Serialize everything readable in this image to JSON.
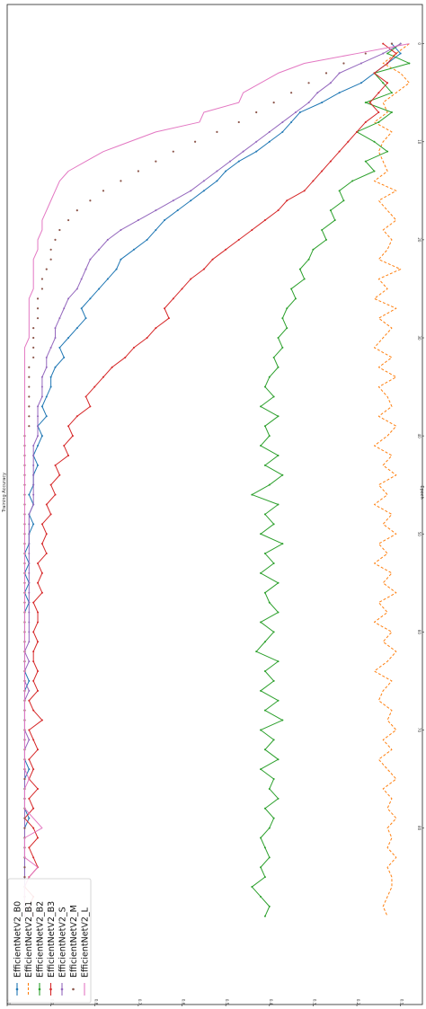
{
  "chart_data": {
    "type": "line",
    "orientation": "rotated-90-clockwise",
    "title": "",
    "xlabel": "Epoch",
    "ylabel": "Training Accuracy",
    "xlim": [
      -4,
      98
    ],
    "ylim": [
      0.05,
      1.0
    ],
    "xticks": [
      0,
      10,
      20,
      30,
      40,
      50,
      60,
      70,
      80
    ],
    "yticks": [
      0.1,
      0.2,
      0.3,
      0.4,
      0.5,
      0.6,
      0.7,
      0.8,
      0.9,
      1.0
    ],
    "grid": false,
    "legend_position": "lower-left",
    "series": [
      {
        "name": "EfficientNetV2_B0",
        "color": "#1f77b4",
        "marker": "dot",
        "dash": "solid",
        "values": [
          0.12,
          0.1,
          0.13,
          0.16,
          0.19,
          0.24,
          0.28,
          0.33,
          0.35,
          0.37,
          0.4,
          0.43,
          0.47,
          0.5,
          0.52,
          0.55,
          0.58,
          0.61,
          0.64,
          0.66,
          0.68,
          0.71,
          0.74,
          0.75,
          0.77,
          0.79,
          0.81,
          0.83,
          0.82,
          0.84,
          0.86,
          0.88,
          0.87,
          0.89,
          0.9,
          0.9,
          0.91,
          0.92,
          0.91,
          0.93,
          0.92,
          0.93,
          0.94,
          0.93,
          0.94,
          0.94,
          0.95,
          0.94,
          0.95,
          0.94,
          0.95,
          0.95,
          0.96,
          0.95,
          0.96,
          0.95,
          0.96,
          0.95,
          0.96,
          0.96,
          0.96,
          0.96,
          0.96,
          0.96,
          0.96,
          0.95,
          0.96,
          0.96,
          0.96,
          0.96,
          0.96,
          0.96,
          0.96,
          0.96,
          0.95,
          0.96,
          0.96,
          0.96,
          0.96,
          0.95,
          0.96,
          0.96,
          0.96,
          0.96,
          0.96,
          0.96,
          0.96,
          0.96,
          0.96,
          0.96
        ]
      },
      {
        "name": "EfficientNetV2_B1",
        "color": "#ff7f0e",
        "marker": "none",
        "dash": "dashed",
        "values": [
          0.08,
          0.11,
          0.14,
          0.1,
          0.08,
          0.11,
          0.14,
          0.13,
          0.16,
          0.12,
          0.14,
          0.15,
          0.14,
          0.13,
          0.16,
          0.11,
          0.15,
          0.13,
          0.11,
          0.14,
          0.12,
          0.13,
          0.15,
          0.1,
          0.15,
          0.13,
          0.16,
          0.11,
          0.15,
          0.12,
          0.14,
          0.16,
          0.12,
          0.15,
          0.11,
          0.15,
          0.13,
          0.12,
          0.15,
          0.11,
          0.13,
          0.16,
          0.12,
          0.14,
          0.11,
          0.15,
          0.13,
          0.16,
          0.12,
          0.14,
          0.11,
          0.15,
          0.13,
          0.16,
          0.12,
          0.14,
          0.11,
          0.15,
          0.13,
          0.16,
          0.12,
          0.14,
          0.11,
          0.13,
          0.16,
          0.12,
          0.14,
          0.15,
          0.12,
          0.13,
          0.11,
          0.14,
          0.12,
          0.15,
          0.13,
          0.11,
          0.14,
          0.12,
          0.13,
          0.11,
          0.13,
          0.12,
          0.13,
          0.11,
          0.13,
          0.12,
          0.12,
          0.13,
          0.14,
          0.13
        ]
      },
      {
        "name": "EfficientNetV2_B2",
        "color": "#2ca02c",
        "marker": "dot",
        "dash": "solid",
        "values": [
          0.1,
          0.13,
          0.08,
          0.16,
          0.14,
          0.12,
          0.18,
          0.12,
          0.15,
          0.2,
          0.16,
          0.13,
          0.18,
          0.16,
          0.21,
          0.24,
          0.23,
          0.26,
          0.25,
          0.28,
          0.27,
          0.3,
          0.31,
          0.33,
          0.32,
          0.35,
          0.34,
          0.36,
          0.37,
          0.36,
          0.38,
          0.37,
          0.39,
          0.38,
          0.4,
          0.41,
          0.39,
          0.42,
          0.38,
          0.41,
          0.4,
          0.42,
          0.38,
          0.41,
          0.37,
          0.4,
          0.44,
          0.38,
          0.41,
          0.39,
          0.42,
          0.37,
          0.41,
          0.39,
          0.42,
          0.38,
          0.41,
          0.4,
          0.38,
          0.42,
          0.39,
          0.41,
          0.43,
          0.38,
          0.41,
          0.39,
          0.42,
          0.38,
          0.41,
          0.37,
          0.42,
          0.39,
          0.41,
          0.38,
          0.42,
          0.39,
          0.4,
          0.38,
          0.41,
          0.39,
          0.4,
          0.42,
          0.41,
          0.4,
          0.42,
          0.41,
          0.44,
          0.42,
          0.4,
          0.41
        ]
      },
      {
        "name": "EfficientNetV2_B3",
        "color": "#d62728",
        "marker": "dot",
        "dash": "solid",
        "values": [
          0.14,
          0.11,
          0.13,
          0.16,
          0.13,
          0.15,
          0.17,
          0.15,
          0.18,
          0.2,
          0.22,
          0.24,
          0.26,
          0.28,
          0.3,
          0.32,
          0.36,
          0.38,
          0.41,
          0.44,
          0.47,
          0.5,
          0.53,
          0.55,
          0.58,
          0.6,
          0.62,
          0.64,
          0.63,
          0.66,
          0.68,
          0.71,
          0.73,
          0.76,
          0.78,
          0.8,
          0.82,
          0.81,
          0.84,
          0.86,
          0.85,
          0.87,
          0.86,
          0.89,
          0.88,
          0.9,
          0.89,
          0.91,
          0.9,
          0.92,
          0.91,
          0.92,
          0.91,
          0.93,
          0.92,
          0.93,
          0.92,
          0.94,
          0.93,
          0.93,
          0.94,
          0.93,
          0.94,
          0.94,
          0.93,
          0.94,
          0.93,
          0.95,
          0.94,
          0.92,
          0.95,
          0.94,
          0.93,
          0.95,
          0.94,
          0.95,
          0.93,
          0.95,
          0.94,
          0.96,
          0.94,
          0.93,
          0.95,
          0.94,
          0.93,
          0.95,
          0.96,
          0.94,
          0.95,
          0.94
        ]
      },
      {
        "name": "EfficientNetV2_S",
        "color": "#9467bd",
        "marker": "dot",
        "dash": "solid",
        "values": [
          0.1,
          0.14,
          0.19,
          0.24,
          0.26,
          0.29,
          0.31,
          0.34,
          0.37,
          0.4,
          0.43,
          0.46,
          0.49,
          0.52,
          0.55,
          0.58,
          0.62,
          0.66,
          0.7,
          0.74,
          0.77,
          0.79,
          0.81,
          0.82,
          0.83,
          0.84,
          0.86,
          0.87,
          0.88,
          0.89,
          0.89,
          0.9,
          0.91,
          0.91,
          0.92,
          0.92,
          0.92,
          0.93,
          0.93,
          0.93,
          0.93,
          0.94,
          0.94,
          0.94,
          0.94,
          0.94,
          0.94,
          0.94,
          0.95,
          0.95,
          0.95,
          0.95,
          0.95,
          0.95,
          0.95,
          0.95,
          0.95,
          0.95,
          0.95,
          0.95,
          0.95,
          0.95,
          0.96,
          0.95,
          0.96,
          0.96,
          0.95,
          0.96,
          0.96,
          0.96,
          0.96,
          0.95,
          0.96,
          0.96,
          0.96,
          0.96,
          0.96,
          0.96,
          0.96,
          0.96,
          0.96,
          0.96,
          0.96,
          0.96,
          0.96,
          0.96,
          0.96,
          0.96,
          0.96,
          0.96
        ]
      },
      {
        "name": "EfficientNetV2_M",
        "color": "#8c564b",
        "marker": "dot",
        "dash": "none",
        "values": [
          0.12,
          0.18,
          0.23,
          0.27,
          0.31,
          0.35,
          0.39,
          0.43,
          0.47,
          0.52,
          0.57,
          0.62,
          0.66,
          0.7,
          0.74,
          0.78,
          0.81,
          0.84,
          0.86,
          0.88,
          0.89,
          0.9,
          0.9,
          0.91,
          0.92,
          0.92,
          0.93,
          0.93,
          0.93,
          0.94,
          0.94,
          0.94,
          0.94,
          0.95,
          0.95,
          0.95,
          0.95,
          0.95,
          0.95,
          0.95,
          0.96,
          0.96,
          0.96,
          0.96,
          0.96,
          0.96,
          0.96,
          0.96,
          0.96,
          0.96,
          0.96,
          0.96,
          0.96,
          0.96,
          0.96,
          0.96,
          0.96,
          0.96,
          0.96,
          0.96,
          0.96,
          0.96,
          0.96,
          0.96,
          0.96,
          0.96,
          0.96,
          0.96,
          0.96,
          0.96,
          0.96,
          0.96,
          0.96,
          0.96,
          0.96,
          0.96,
          0.96,
          0.96,
          0.96,
          0.96,
          0.96,
          0.96,
          0.96,
          0.96,
          0.96,
          0.96,
          0.96,
          0.96,
          0.96,
          0.96
        ]
      },
      {
        "name": "EfficientNetV2_L",
        "color": "#e377c2",
        "marker": "none",
        "dash": "solid",
        "values": [
          0.08,
          0.2,
          0.32,
          0.38,
          0.42,
          0.46,
          0.47,
          0.55,
          0.56,
          0.66,
          0.72,
          0.78,
          0.82,
          0.86,
          0.88,
          0.89,
          0.9,
          0.91,
          0.92,
          0.92,
          0.93,
          0.93,
          0.94,
          0.94,
          0.94,
          0.94,
          0.95,
          0.95,
          0.95,
          0.95,
          0.95,
          0.96,
          0.96,
          0.96,
          0.96,
          0.96,
          0.96,
          0.96,
          0.96,
          0.96,
          0.96,
          0.96,
          0.96,
          0.96,
          0.96,
          0.96,
          0.96,
          0.96,
          0.96,
          0.96,
          0.96,
          0.96,
          0.96,
          0.96,
          0.96,
          0.96,
          0.96,
          0.96,
          0.96,
          0.96,
          0.96,
          0.96,
          0.96,
          0.96,
          0.96,
          0.96,
          0.96,
          0.96,
          0.96,
          0.96,
          0.96,
          0.96,
          0.96,
          0.96,
          0.96,
          0.95,
          0.96,
          0.96,
          0.96,
          0.94,
          0.92,
          0.96,
          0.96,
          0.96,
          0.93,
          0.95,
          0.96,
          0.96,
          0.96,
          0.96
        ]
      }
    ]
  }
}
